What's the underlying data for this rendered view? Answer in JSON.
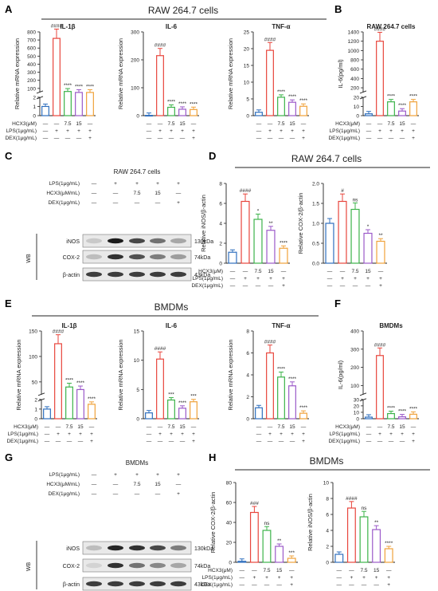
{
  "panels": {
    "A": "A",
    "B": "B",
    "C": "C",
    "D": "D",
    "E": "E",
    "F": "F",
    "G": "G",
    "H": "H"
  },
  "headers": {
    "A": "RAW 264.7 cells",
    "D": "RAW 264.7 cells",
    "E": "BMDMs",
    "G": "BMDMs",
    "H": "BMDMs"
  },
  "colors": {
    "control": "#2f6fbe",
    "lps": "#e8453c",
    "hcx75": "#3cb34a",
    "hcx15": "#9b59c9",
    "dex": "#f0a23a"
  },
  "treatment_rows": {
    "hcx": {
      "label": "HCX3(μM)",
      "vals": [
        "—",
        "—",
        "7.5",
        "15",
        "—"
      ]
    },
    "lps": {
      "label": "LPS(1μg/mL)",
      "vals": [
        "—",
        "+",
        "+",
        "+",
        "+"
      ]
    },
    "dex": {
      "label": "DEX(1μg/mL)",
      "vals": [
        "—",
        "—",
        "—",
        "—",
        "+"
      ]
    }
  },
  "western": {
    "C": {
      "title": "RAW 264.7 cells",
      "rows": [
        {
          "label": "LPS(1μg/mL)",
          "vals": [
            "—",
            "+",
            "+",
            "+",
            "+"
          ]
        },
        {
          "label": "HCX3(μM/mL)",
          "vals": [
            "—",
            "—",
            "7.5",
            "15",
            "—"
          ]
        },
        {
          "label": "DEX(1μg/mL)",
          "vals": [
            "—",
            "—",
            "—",
            "—",
            "+"
          ]
        }
      ],
      "bands": [
        {
          "name": "iNOS",
          "kda": "130kDa"
        },
        {
          "name": "COX-2",
          "kda": "74kDa"
        },
        {
          "name": "β-actin",
          "kda": "43kDa"
        }
      ],
      "wb": "WB"
    },
    "G": {
      "title": "BMDMs",
      "rows": [
        {
          "label": "LPS(1μg/mL)",
          "vals": [
            "—",
            "+",
            "+",
            "+",
            "+"
          ]
        },
        {
          "label": "HCX3(μM/mL)",
          "vals": [
            "—",
            "—",
            "7.5",
            "15",
            "—"
          ]
        },
        {
          "label": "DEX(1μg/mL)",
          "vals": [
            "—",
            "—",
            "—",
            "—",
            "+"
          ]
        }
      ],
      "bands": [
        {
          "name": "iNOS",
          "kda": "130kDa"
        },
        {
          "name": "COX-2",
          "kda": "74kDa"
        },
        {
          "name": "β-actin",
          "kda": "43kDa"
        }
      ],
      "wb": "WB"
    }
  },
  "chart_data": [
    {
      "id": "A1",
      "type": "bar",
      "title": "IL-1β",
      "ylabel": "Relative mRNA expression",
      "break": true,
      "ylim": [
        0,
        800
      ],
      "low_ticks": [
        "0",
        "1",
        "2"
      ],
      "high_ticks": [
        "100",
        "200",
        "300",
        "400",
        "500",
        "600",
        "700",
        "800"
      ],
      "values": [
        1,
        720,
        62,
        12,
        10
      ],
      "sig": [
        "",
        "####",
        "****",
        "****",
        "****"
      ]
    },
    {
      "id": "A2",
      "type": "bar",
      "title": "IL-6",
      "ylabel": "Relative mRNA expression",
      "break": false,
      "ylim": [
        0,
        300
      ],
      "ticks": [
        "0",
        "100",
        "200",
        "300"
      ],
      "values": [
        1,
        215,
        30,
        23,
        22
      ],
      "sig": [
        "",
        "####",
        "****",
        "****",
        "****"
      ]
    },
    {
      "id": "A3",
      "type": "bar",
      "title": "TNF-α",
      "ylabel": "Relative mRNA expression",
      "break": false,
      "ylim": [
        0,
        25
      ],
      "ticks": [
        "0",
        "5",
        "10",
        "15",
        "20",
        "25"
      ],
      "values": [
        1,
        19.5,
        5.5,
        4,
        2.8
      ],
      "sig": [
        "",
        "####",
        "****",
        "****",
        "****"
      ]
    },
    {
      "id": "B",
      "type": "bar",
      "title": "RAW 264.7 cells",
      "ylabel": "IL-6(pg/ml)",
      "break": true,
      "ylim": [
        0,
        1400
      ],
      "low_ticks": [
        "0",
        "10",
        "20"
      ],
      "high_ticks": [
        "200",
        "400",
        "600",
        "800",
        "1000",
        "1200",
        "1400"
      ],
      "values": [
        2,
        1200,
        15,
        5,
        15
      ],
      "sig": [
        "",
        "####",
        "****",
        "****",
        "****"
      ]
    },
    {
      "id": "D1",
      "type": "bar",
      "title": "",
      "ylabel": "Relative iNOS/β-actin",
      "break": false,
      "ylim": [
        0,
        8
      ],
      "ticks": [
        "0",
        "2",
        "4",
        "6",
        "8"
      ],
      "values": [
        1.1,
        6.2,
        4.4,
        3.3,
        1.5
      ],
      "sig": [
        "",
        "####",
        "*",
        "**",
        "****"
      ]
    },
    {
      "id": "D2",
      "type": "bar",
      "title": "",
      "ylabel": "Relative COX-2/β-actin",
      "break": false,
      "ylim": [
        0,
        2.0
      ],
      "ticks": [
        "0.0",
        "0.5",
        "1.0",
        "1.5",
        "2.0"
      ],
      "values": [
        1.0,
        1.55,
        1.35,
        0.75,
        0.55
      ],
      "sig": [
        "",
        "#",
        "ns",
        "*",
        "**"
      ]
    },
    {
      "id": "E1",
      "type": "bar",
      "title": "IL-1β",
      "ylabel": "Relative mRNA expression",
      "break": true,
      "ylim": [
        0,
        150
      ],
      "low_ticks": [
        "0",
        "1",
        "2"
      ],
      "high_ticks": [
        "50",
        "100",
        "150"
      ],
      "values": [
        1,
        125,
        40,
        35,
        1.5
      ],
      "sig": [
        "",
        "####",
        "****",
        "****",
        "****"
      ]
    },
    {
      "id": "E2",
      "type": "bar",
      "title": "IL-6",
      "ylabel": "Relative mRNA expression",
      "break": false,
      "ylim": [
        0,
        15
      ],
      "ticks": [
        "0",
        "5",
        "10",
        "15"
      ],
      "values": [
        1,
        10.2,
        3.2,
        1.8,
        2.9
      ],
      "sig": [
        "",
        "####",
        "***",
        "****",
        "***"
      ]
    },
    {
      "id": "E3",
      "type": "bar",
      "title": "TNF-α",
      "ylabel": "Relative mRNA expression",
      "break": false,
      "ylim": [
        0,
        8
      ],
      "ticks": [
        "0",
        "2",
        "4",
        "6",
        "8"
      ],
      "values": [
        1,
        6.0,
        3.8,
        3.0,
        0.5
      ],
      "sig": [
        "",
        "####",
        "****",
        "****",
        "****"
      ]
    },
    {
      "id": "F",
      "type": "bar",
      "title": "BMDMs",
      "ylabel": "IL-6(pg/ml)",
      "break": true,
      "ylim": [
        0,
        400
      ],
      "low_ticks": [
        "0",
        "10",
        "20",
        "30"
      ],
      "high_ticks": [
        "100",
        "200",
        "300",
        "400"
      ],
      "values": [
        2.5,
        265,
        8,
        3,
        7
      ],
      "sig": [
        "",
        "####",
        "****",
        "****",
        "****"
      ]
    },
    {
      "id": "H1",
      "type": "bar",
      "title": "",
      "ylabel": "Relative COX-2/β-actin",
      "break": false,
      "ylim": [
        0,
        80
      ],
      "ticks": [
        "0",
        "20",
        "40",
        "60",
        "80"
      ],
      "values": [
        1,
        50,
        32,
        16,
        4
      ],
      "sig": [
        "",
        "###",
        "ns",
        "**",
        "***"
      ]
    },
    {
      "id": "H2",
      "type": "bar",
      "title": "",
      "ylabel": "Relative iNOS/β-actin",
      "break": false,
      "ylim": [
        0,
        10
      ],
      "ticks": [
        "0",
        "2",
        "4",
        "6",
        "8",
        "10"
      ],
      "values": [
        1,
        6.8,
        5.7,
        4.1,
        1.7
      ],
      "sig": [
        "",
        "####",
        "ns",
        "**",
        "****"
      ]
    }
  ]
}
